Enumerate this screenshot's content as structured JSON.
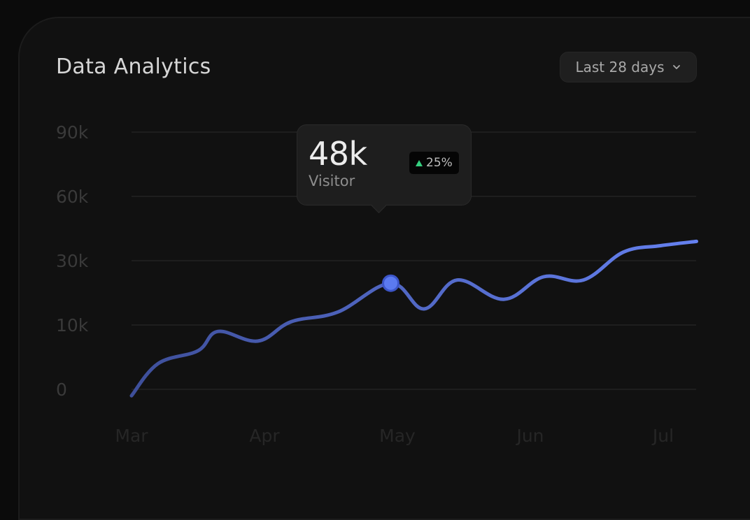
{
  "title": "Data Analytics",
  "range_selector": {
    "label": "Last 28 days"
  },
  "tooltip": {
    "value": "48k",
    "label": "Visitor",
    "change": "25%"
  },
  "colors": {
    "line_start": "#3e4f9a",
    "line_end": "#6581f0",
    "point": "#5b7af0",
    "trend_up": "#35d07f"
  },
  "chart_data": {
    "type": "line",
    "title": "Data Analytics",
    "xlabel": "",
    "ylabel": "",
    "y_ticks": [
      "90k",
      "60k",
      "30k",
      "10k",
      "0"
    ],
    "x_ticks": [
      "Mar",
      "Apr",
      "May",
      "Jun",
      "Jul"
    ],
    "grid": true,
    "series": [
      {
        "x": [
          0,
          0.2,
          0.5,
          0.65,
          0.95,
          1.2,
          1.55,
          1.95,
          2.2,
          2.45,
          2.8,
          3.1,
          3.4,
          3.7,
          3.98,
          4.25
        ],
        "values": [
          -1,
          4,
          6,
          9,
          7.5,
          11,
          14,
          23,
          15,
          24,
          18,
          25,
          24,
          34,
          37,
          39
        ]
      }
    ],
    "highlight": {
      "x": 1.95,
      "value": "48k",
      "label": "Visitor",
      "change": "25%"
    }
  }
}
